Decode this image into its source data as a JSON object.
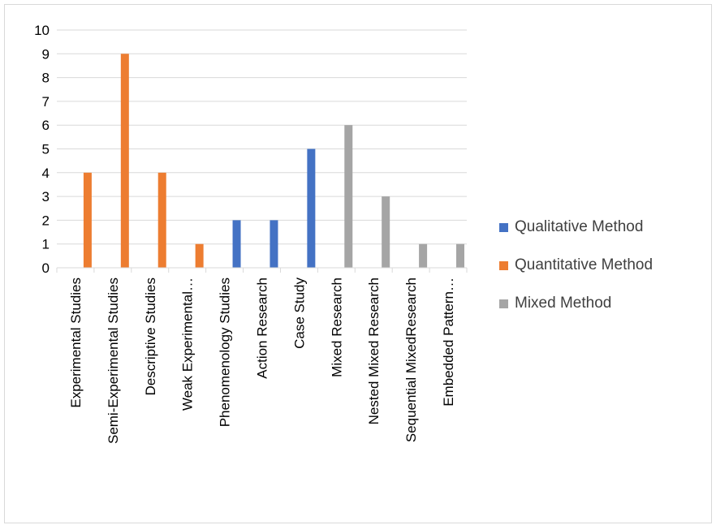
{
  "chart_data": {
    "type": "bar",
    "title": "",
    "xlabel": "",
    "ylabel": "",
    "ylim": [
      0,
      10
    ],
    "yticks": [
      "0",
      "1",
      "2",
      "3",
      "4",
      "5",
      "6",
      "7",
      "8",
      "9",
      "10"
    ],
    "grid": true,
    "legend_position": "right",
    "categories": [
      "Experimental Studies",
      "Semi-Experimental Studies",
      "Descriptive Studies",
      "Weak Experimental…",
      "Phenomenology Studies",
      "Action Research",
      "Case Study",
      "Mixed Research",
      "Nested Mixed Research",
      "Sequential MixedResearch",
      "Embedded Pattern…"
    ],
    "series": [
      {
        "name": "Qualitative Method",
        "color": "#4472c4",
        "values": [
          0,
          0,
          0,
          0,
          2,
          2,
          5,
          0,
          0,
          0,
          0
        ]
      },
      {
        "name": "Quantitative Method",
        "color": "#ed7d31",
        "values": [
          4,
          9,
          4,
          1,
          0,
          0,
          0,
          0,
          0,
          0,
          0
        ]
      },
      {
        "name": "Mixed Method",
        "color": "#a5a5a5",
        "values": [
          0,
          0,
          0,
          0,
          0,
          0,
          0,
          6,
          3,
          1,
          1
        ]
      }
    ]
  }
}
